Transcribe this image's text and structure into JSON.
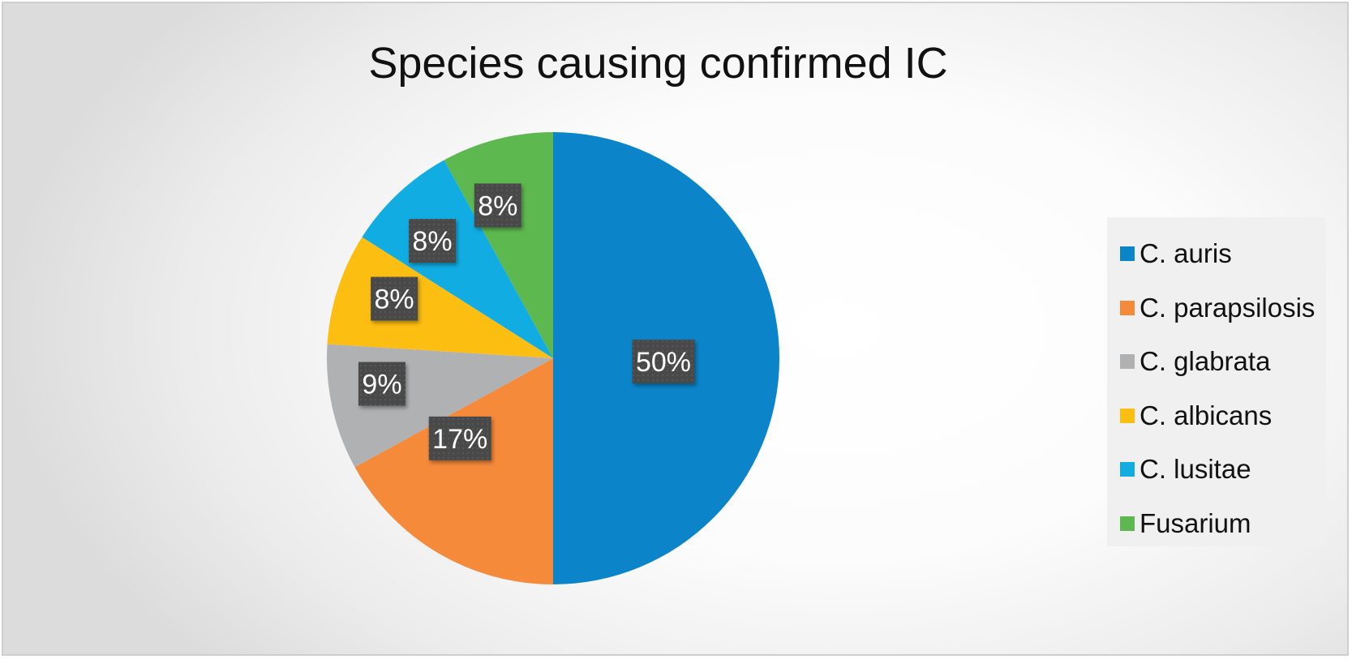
{
  "chart_data": {
    "type": "pie",
    "title": "Species causing confirmed IC",
    "start_angle": "top, clockwise",
    "legend_position": "right",
    "slices": [
      {
        "label": "C. auris",
        "value": 50,
        "display": "50%",
        "color": "#0B84C9"
      },
      {
        "label": "C. parapsilosis",
        "value": 17,
        "display": "17%",
        "color": "#F58A3A"
      },
      {
        "label": "C. glabrata",
        "value": 9,
        "display": "9%",
        "color": "#B0B1B3"
      },
      {
        "label": "C. albicans",
        "value": 8,
        "display": "8%",
        "color": "#FDBE12"
      },
      {
        "label": "C. lusitae",
        "value": 8,
        "display": "8%",
        "color": "#11ACE2"
      },
      {
        "label": "Fusarium",
        "value": 8,
        "display": "8%",
        "color": "#5DB84F"
      }
    ]
  },
  "colors": {
    "label_box": "#4A4A4A",
    "legend_background": "#F0F0F0",
    "frame_border": "#CFCFCF"
  }
}
